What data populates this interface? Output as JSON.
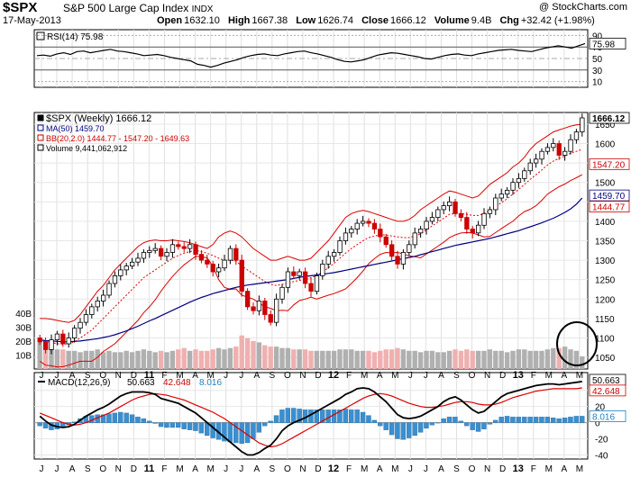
{
  "header": {
    "ticker": "$SPX",
    "name": "S&P 500 Large Cap Index",
    "exchange": "INDX",
    "credit": "@ StockCharts.com",
    "date": "17-May-2013",
    "open_label": "Open",
    "open": "1632.10",
    "high_label": "High",
    "high": "1667.38",
    "low_label": "Low",
    "low": "1626.74",
    "close_label": "Close",
    "close": "1666.12",
    "volume_label": "Volume",
    "volume": "9.4B",
    "chg_label": "Chg",
    "chg": "+32.42 (+1.98%)"
  },
  "colors": {
    "up": "#000000",
    "down": "#cc0000",
    "ma": "#000080",
    "bb": "#dd0000",
    "vol_gray": "#b0b0b0",
    "vol_pink": "#f0b0b0",
    "hist": "#3a8fd0"
  },
  "chart_data": [
    {
      "type": "line",
      "panel": "rsi",
      "legend": "RSI(14) 75.98",
      "y_ticks": [
        90,
        70,
        50,
        30,
        10
      ],
      "ylim": [
        0,
        100
      ],
      "last_label": "75.98",
      "values": [
        55,
        56,
        54,
        58,
        60,
        57,
        62,
        63,
        60,
        62,
        64,
        66,
        63,
        62,
        60,
        58,
        55,
        56,
        57,
        55,
        52,
        50,
        48,
        46,
        40,
        38,
        35,
        38,
        42,
        45,
        48,
        52,
        55,
        57,
        58,
        56,
        55,
        58,
        60,
        62,
        63,
        60,
        58,
        55,
        52,
        48,
        45,
        44,
        46,
        48,
        52,
        56,
        58,
        60,
        59,
        57,
        55,
        53,
        50,
        49,
        52,
        55,
        57,
        58,
        56,
        55,
        58,
        60,
        62,
        64,
        65,
        66,
        64,
        63,
        62,
        65,
        68,
        70,
        72,
        70,
        68,
        72,
        76
      ]
    },
    {
      "type": "candlestick",
      "panel": "price",
      "legend": [
        "$SPX (Weekly) 1666.12",
        "MA(50) 1459.70",
        "BB(20,2.0) 1444.77 - 1547.20 - 1649.63",
        "Volume 9,441,062,912"
      ],
      "y_ticks": [
        1650,
        1600,
        1550,
        1500,
        1450,
        1400,
        1350,
        1300,
        1250,
        1200,
        1150,
        1100,
        1050
      ],
      "ylim": [
        1020,
        1680
      ],
      "right_labels": [
        "1666.12",
        "1547.20",
        "1459.70",
        "1444.77"
      ],
      "volume_ticks": [
        "40B",
        "30B",
        "20B",
        "10B"
      ],
      "volume_ylim": [
        0,
        45
      ],
      "x_labels": [
        "J",
        "J",
        "A",
        "S",
        "O",
        "N",
        "D",
        "11",
        "F",
        "M",
        "A",
        "M",
        "J",
        "J",
        "A",
        "S",
        "O",
        "N",
        "D",
        "12",
        "F",
        "M",
        "A",
        "M",
        "J",
        "J",
        "A",
        "S",
        "O",
        "N",
        "D",
        "13",
        "F",
        "M",
        "A",
        "M"
      ],
      "close": [
        1090,
        1070,
        1095,
        1110,
        1085,
        1100,
        1125,
        1140,
        1160,
        1180,
        1195,
        1210,
        1240,
        1260,
        1275,
        1285,
        1295,
        1305,
        1320,
        1325,
        1330,
        1310,
        1320,
        1340,
        1335,
        1330,
        1340,
        1315,
        1300,
        1290,
        1270,
        1280,
        1300,
        1330,
        1300,
        1220,
        1180,
        1170,
        1195,
        1160,
        1140,
        1200,
        1230,
        1270,
        1260,
        1270,
        1240,
        1220,
        1260,
        1290,
        1310,
        1320,
        1350,
        1370,
        1380,
        1395,
        1400,
        1395,
        1380,
        1360,
        1340,
        1310,
        1290,
        1320,
        1340,
        1370,
        1380,
        1400,
        1410,
        1430,
        1440,
        1450,
        1420,
        1410,
        1380,
        1370,
        1390,
        1420,
        1430,
        1460,
        1470,
        1480,
        1500,
        1510,
        1530,
        1550,
        1560,
        1580,
        1590,
        1600,
        1570,
        1580,
        1610,
        1630,
        1666
      ],
      "bb_upper": [
        1150,
        1150,
        1148,
        1145,
        1142,
        1140,
        1145,
        1160,
        1180,
        1200,
        1220,
        1235,
        1255,
        1275,
        1290,
        1305,
        1320,
        1335,
        1345,
        1350,
        1352,
        1350,
        1350,
        1352,
        1350,
        1348,
        1345,
        1340,
        1335,
        1330,
        1340,
        1360,
        1370,
        1375,
        1370,
        1360,
        1345,
        1330,
        1320,
        1310,
        1300,
        1300,
        1305,
        1310,
        1305,
        1300,
        1300,
        1305,
        1320,
        1335,
        1350,
        1370,
        1390,
        1410,
        1420,
        1425,
        1428,
        1425,
        1420,
        1415,
        1410,
        1405,
        1400,
        1400,
        1405,
        1415,
        1430,
        1440,
        1450,
        1460,
        1470,
        1478,
        1475,
        1470,
        1465,
        1460,
        1465,
        1480,
        1495,
        1505,
        1515,
        1525,
        1540,
        1550,
        1565,
        1585,
        1600,
        1610,
        1620,
        1630,
        1635,
        1640,
        1645,
        1648,
        1650
      ],
      "bb_mid": [
        1095,
        1090,
        1088,
        1085,
        1084,
        1085,
        1090,
        1100,
        1110,
        1120,
        1135,
        1150,
        1165,
        1180,
        1195,
        1210,
        1225,
        1240,
        1255,
        1265,
        1275,
        1285,
        1295,
        1305,
        1312,
        1318,
        1322,
        1325,
        1322,
        1318,
        1312,
        1305,
        1300,
        1300,
        1298,
        1285,
        1275,
        1265,
        1255,
        1245,
        1238,
        1235,
        1238,
        1240,
        1245,
        1248,
        1250,
        1255,
        1260,
        1270,
        1280,
        1292,
        1305,
        1318,
        1330,
        1340,
        1350,
        1358,
        1362,
        1365,
        1365,
        1362,
        1360,
        1358,
        1358,
        1362,
        1368,
        1378,
        1388,
        1398,
        1408,
        1418,
        1420,
        1420,
        1418,
        1415,
        1415,
        1420,
        1428,
        1438,
        1448,
        1458,
        1470,
        1482,
        1495,
        1508,
        1520,
        1532,
        1545,
        1555,
        1562,
        1568,
        1575,
        1580,
        1585
      ],
      "bb_lower": [
        1040,
        1030,
        1028,
        1025,
        1026,
        1030,
        1035,
        1040,
        1040,
        1040,
        1050,
        1065,
        1075,
        1085,
        1100,
        1115,
        1130,
        1145,
        1165,
        1180,
        1198,
        1220,
        1240,
        1258,
        1274,
        1288,
        1299,
        1310,
        1309,
        1306,
        1284,
        1250,
        1230,
        1225,
        1226,
        1210,
        1205,
        1200,
        1190,
        1180,
        1176,
        1170,
        1171,
        1170,
        1185,
        1196,
        1200,
        1205,
        1200,
        1205,
        1210,
        1214,
        1220,
        1226,
        1240,
        1255,
        1272,
        1291,
        1304,
        1315,
        1320,
        1319,
        1320,
        1316,
        1311,
        1309,
        1306,
        1316,
        1326,
        1336,
        1346,
        1358,
        1365,
        1370,
        1371,
        1370,
        1365,
        1360,
        1361,
        1371,
        1381,
        1391,
        1400,
        1414,
        1425,
        1431,
        1440,
        1454,
        1470,
        1480,
        1489,
        1496,
        1505,
        1512,
        1520
      ],
      "ma50": [
        1095,
        1093,
        1092,
        1091,
        1090,
        1090,
        1091,
        1092,
        1094,
        1096,
        1098,
        1101,
        1104,
        1108,
        1113,
        1118,
        1124,
        1130,
        1137,
        1144,
        1150,
        1157,
        1164,
        1171,
        1178,
        1185,
        1192,
        1198,
        1204,
        1209,
        1214,
        1218,
        1222,
        1226,
        1230,
        1233,
        1236,
        1238,
        1240,
        1242,
        1244,
        1246,
        1248,
        1250,
        1253,
        1256,
        1258,
        1260,
        1262,
        1264,
        1266,
        1268,
        1271,
        1274,
        1277,
        1280,
        1283,
        1286,
        1289,
        1292,
        1295,
        1298,
        1301,
        1304,
        1307,
        1310,
        1314,
        1318,
        1322,
        1326,
        1330,
        1334,
        1338,
        1341,
        1344,
        1347,
        1350,
        1353,
        1356,
        1360,
        1364,
        1368,
        1372,
        1376,
        1381,
        1386,
        1391,
        1396,
        1402,
        1408,
        1415,
        1423,
        1432,
        1444,
        1460
      ],
      "volume": [
        22,
        17,
        16,
        14,
        14,
        13,
        13,
        12,
        13,
        13,
        14,
        12,
        13,
        12,
        12,
        13,
        12,
        13,
        14,
        13,
        12,
        13,
        12,
        13,
        14,
        15,
        13,
        14,
        13,
        13,
        14,
        15,
        14,
        15,
        16,
        24,
        22,
        20,
        19,
        17,
        16,
        16,
        15,
        15,
        14,
        14,
        14,
        13,
        13,
        13,
        13,
        13,
        14,
        14,
        14,
        13,
        13,
        13,
        12,
        13,
        14,
        14,
        15,
        14,
        13,
        13,
        12,
        13,
        13,
        12,
        12,
        13,
        14,
        13,
        14,
        13,
        13,
        13,
        14,
        13,
        13,
        12,
        13,
        14,
        14,
        13,
        13,
        13,
        14,
        15,
        15,
        16,
        14,
        13,
        9
      ]
    },
    {
      "type": "line",
      "panel": "macd",
      "legend": "MACD(12,26,9)",
      "legend_values": [
        "50.663",
        "42.648",
        "8.016"
      ],
      "y_ticks": [
        40,
        20,
        0,
        -20,
        -40
      ],
      "ylim": [
        -45,
        62
      ],
      "right_labels": [
        "50.663",
        "42.648",
        "8.016"
      ],
      "macd": [
        8,
        2,
        -3,
        -5,
        -6,
        -5,
        -2,
        3,
        8,
        12,
        16,
        19,
        23,
        28,
        33,
        36,
        38,
        38,
        38,
        37,
        35,
        30,
        28,
        26,
        24,
        20,
        16,
        12,
        6,
        0,
        -6,
        -12,
        -18,
        -24,
        -30,
        -36,
        -40,
        -40,
        -37,
        -32,
        -28,
        -20,
        -10,
        -4,
        0,
        3,
        6,
        10,
        14,
        18,
        22,
        26,
        30,
        35,
        38,
        42,
        43,
        42,
        38,
        32,
        26,
        18,
        10,
        6,
        5,
        6,
        8,
        12,
        16,
        20,
        26,
        30,
        32,
        28,
        22,
        16,
        12,
        14,
        20,
        26,
        32,
        36,
        38,
        40,
        42,
        44,
        46,
        47,
        48,
        48,
        47,
        48,
        49,
        50,
        51
      ],
      "signal": [
        12,
        9,
        6,
        3,
        0,
        -2,
        -3,
        -2,
        0,
        3,
        6,
        9,
        12,
        16,
        20,
        24,
        28,
        31,
        33,
        35,
        36,
        35,
        34,
        32,
        30,
        28,
        25,
        22,
        19,
        16,
        13,
        9,
        5,
        0,
        -5,
        -10,
        -15,
        -20,
        -25,
        -28,
        -30,
        -29,
        -26,
        -22,
        -18,
        -14,
        -10,
        -6,
        -2,
        2,
        6,
        10,
        14,
        18,
        22,
        26,
        30,
        33,
        35,
        36,
        35,
        33,
        30,
        27,
        24,
        22,
        20,
        19,
        19,
        20,
        21,
        23,
        25,
        26,
        26,
        25,
        23,
        22,
        22,
        23,
        25,
        28,
        31,
        33,
        35,
        37,
        39,
        40,
        41,
        42,
        42,
        42,
        42,
        42,
        43
      ]
    }
  ]
}
